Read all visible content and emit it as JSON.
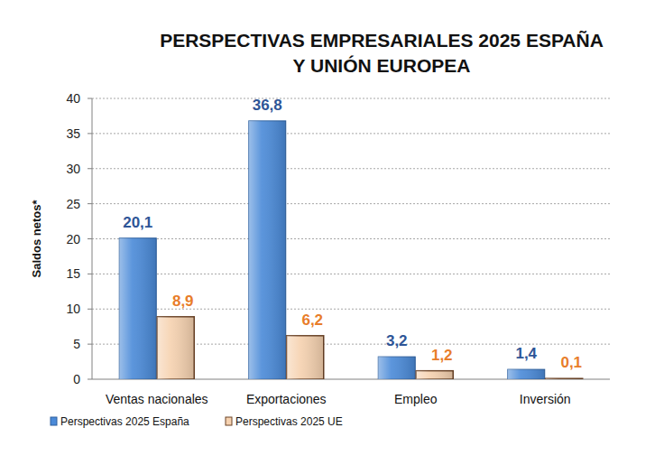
{
  "chart_data": {
    "type": "bar",
    "title": "PERSPECTIVAS EMPRESARIALES 2025 ESPAÑA\nY UNIÓN EUROPEA",
    "y_label": "Saldos netos*",
    "categories": [
      "Ventas nacionales",
      "Exportaciones",
      "Empleo",
      "Inversión"
    ],
    "series": [
      {
        "name": "Perspectivas 2025 España",
        "color": "#4a8ad8",
        "values": [
          20.1,
          36.8,
          3.2,
          1.4
        ],
        "value_labels": [
          "20,1",
          "36,8",
          "3,2",
          "1,4"
        ]
      },
      {
        "name": "Perspectivas 2025 UE",
        "color": "#f6d2b0",
        "values": [
          8.9,
          6.2,
          1.2,
          0.1
        ],
        "value_labels": [
          "8,9",
          "6,2",
          "1,2",
          "0,1"
        ]
      }
    ],
    "ylim": [
      0,
      40
    ],
    "yticks": [
      0,
      5,
      10,
      15,
      20,
      25,
      30,
      35,
      40
    ],
    "grid": true,
    "legend": "bottom",
    "data_labels": true
  }
}
